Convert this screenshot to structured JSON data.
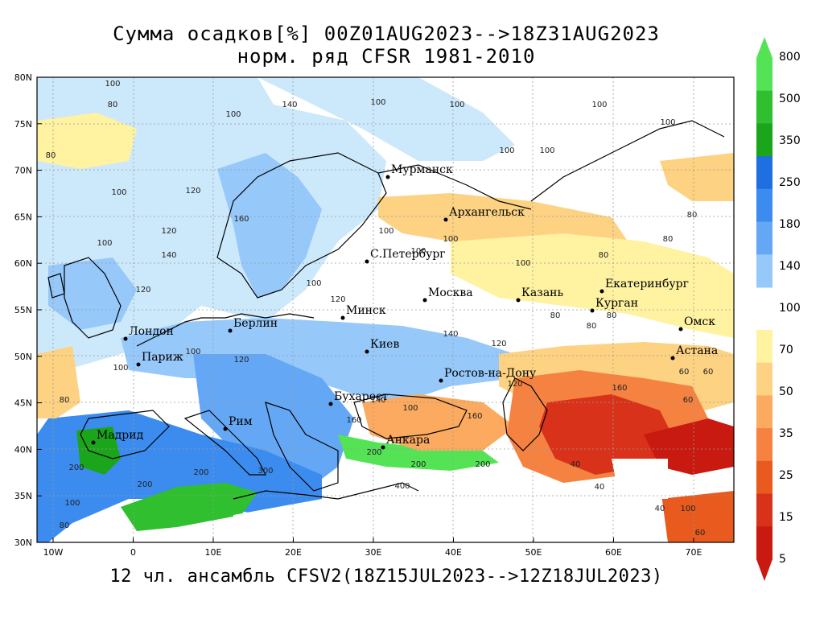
{
  "title_line1": "Сумма осадков[%] 00Z01AUG2023-->18Z31AUG2023",
  "title_line2": "норм. ряд CFSR 1981-2010",
  "footer": "12 чл. ансамбль CFSV2(18Z15JUL2023-->12Z18JUL2023)",
  "lat_ticks": [
    "80N",
    "75N",
    "70N",
    "65N",
    "60N",
    "55N",
    "50N",
    "45N",
    "40N",
    "35N",
    "30N"
  ],
  "lon_ticks": [
    "10W",
    "0",
    "10E",
    "20E",
    "30E",
    "40E",
    "50E",
    "60E",
    "70E"
  ],
  "colorbar": {
    "levels": [
      "800",
      "500",
      "350",
      "250",
      "180",
      "140",
      "100",
      "70",
      "50",
      "35",
      "25",
      "15",
      "5"
    ],
    "colors": [
      "#54e354",
      "#2fbf2f",
      "#1aa51a",
      "#1f6fe0",
      "#3c8cf0",
      "#64a8f5",
      "#96c8fa",
      "#b8e8ff",
      "#fff2a0",
      "#fdd282",
      "#fbaa60",
      "#f58240",
      "#e85a1e",
      "#d8321a",
      "#c81a10"
    ]
  },
  "cities": [
    {
      "name": "Мурманск"
    },
    {
      "name": "Архангельск"
    },
    {
      "name": "С.Петербург"
    },
    {
      "name": "Москва"
    },
    {
      "name": "Казань"
    },
    {
      "name": "Екатеринбург"
    },
    {
      "name": "Курган"
    },
    {
      "name": "Омск"
    },
    {
      "name": "Астана"
    },
    {
      "name": "Минск"
    },
    {
      "name": "Берлин"
    },
    {
      "name": "Лондон"
    },
    {
      "name": "Париж"
    },
    {
      "name": "Киев"
    },
    {
      "name": "Ростов-на-Дону"
    },
    {
      "name": "Бухарест"
    },
    {
      "name": "Рим"
    },
    {
      "name": "Мадрид"
    },
    {
      "name": "Анкара"
    }
  ],
  "contour_labels": [
    "100",
    "120",
    "140",
    "160",
    "80",
    "60",
    "40",
    "200",
    "300",
    "400"
  ]
}
